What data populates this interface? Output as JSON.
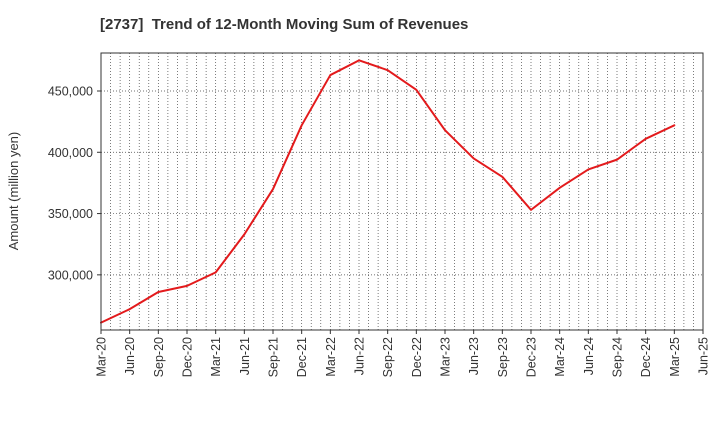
{
  "chart_data": {
    "type": "line",
    "title": "[2737]  Trend of 12-Month Moving Sum of Revenues",
    "xlabel": "",
    "ylabel": "Amount (million yen)",
    "x_ticks": [
      "Mar-20",
      "Jun-20",
      "Sep-20",
      "Dec-20",
      "Mar-21",
      "Jun-21",
      "Sep-21",
      "Dec-21",
      "Mar-22",
      "Jun-22",
      "Sep-22",
      "Dec-22",
      "Mar-23",
      "Jun-23",
      "Sep-23",
      "Dec-23",
      "Mar-24",
      "Jun-24",
      "Sep-24",
      "Dec-24",
      "Mar-25",
      "Jun-25"
    ],
    "y_ticks": [
      300000,
      350000,
      400000,
      450000
    ],
    "y_tick_labels": [
      "300,000",
      "350,000",
      "400,000",
      "450,000"
    ],
    "ylim": [
      255000,
      481000
    ],
    "grid": true,
    "line_color": "#e31a1c",
    "series": [
      {
        "x": [
          "Mar-20",
          "Jun-20",
          "Sep-20",
          "Dec-20",
          "Mar-21",
          "Jun-21",
          "Sep-21",
          "Dec-21",
          "Mar-22",
          "Jun-22",
          "Sep-22",
          "Dec-22",
          "Mar-23",
          "Jun-23",
          "Sep-23",
          "Dec-23",
          "Mar-24",
          "Jun-24",
          "Sep-24",
          "Dec-24",
          "Mar-25"
        ],
        "values": [
          261000,
          272000,
          286000,
          291000,
          302000,
          333000,
          370000,
          422000,
          463000,
          475000,
          467000,
          451000,
          418000,
          395000,
          380000,
          353000,
          371000,
          386000,
          394000,
          411000,
          422000
        ]
      }
    ]
  }
}
